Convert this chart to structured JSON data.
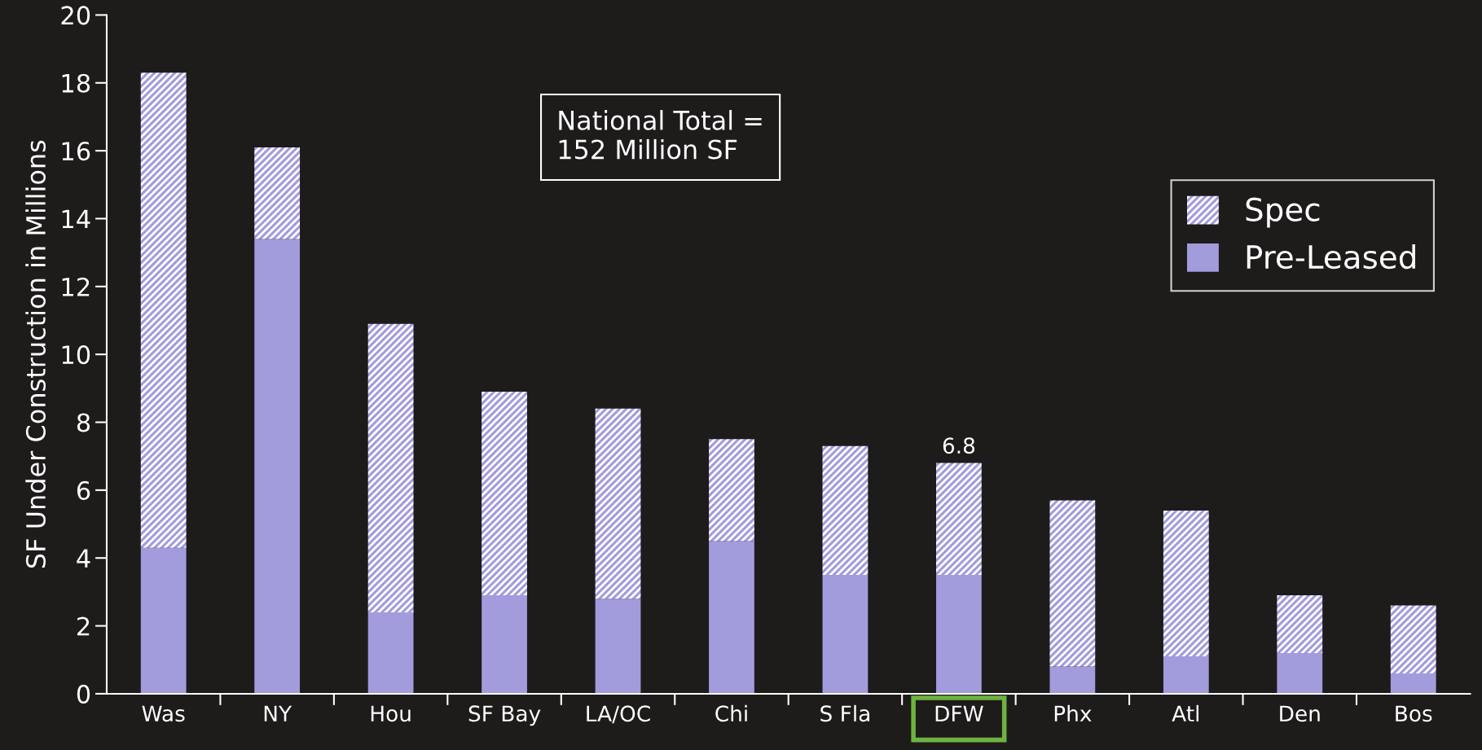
{
  "chart_data": {
    "type": "bar",
    "stacked": true,
    "ylabel": "SF Under Construction in Millions",
    "categories": [
      "Was",
      "NY",
      "Hou",
      "SF Bay",
      "LA/OC",
      "Chi",
      "S Fla",
      "DFW",
      "Phx",
      "Atl",
      "Den",
      "Bos"
    ],
    "series": [
      {
        "name": "Pre-Leased",
        "color": "#a29bdc",
        "values": [
          4.3,
          13.4,
          2.4,
          2.9,
          2.8,
          4.5,
          3.5,
          3.5,
          0.8,
          1.1,
          1.2,
          0.6
        ]
      },
      {
        "name": "Spec",
        "color": "#a29bdc",
        "values": [
          14.0,
          2.7,
          8.5,
          6.0,
          5.6,
          3.0,
          3.8,
          3.3,
          4.9,
          4.3,
          1.7,
          2.0
        ]
      }
    ],
    "totals": [
      null,
      null,
      null,
      null,
      null,
      null,
      null,
      "6.8",
      null,
      null,
      null,
      null
    ],
    "ylim": [
      0,
      20
    ],
    "yticks": [
      0,
      2,
      4,
      6,
      8,
      10,
      12,
      14,
      16,
      18,
      20
    ],
    "annotations": [
      "National Total =\n152 Million SF"
    ],
    "legend": "right",
    "grid": false
  }
}
